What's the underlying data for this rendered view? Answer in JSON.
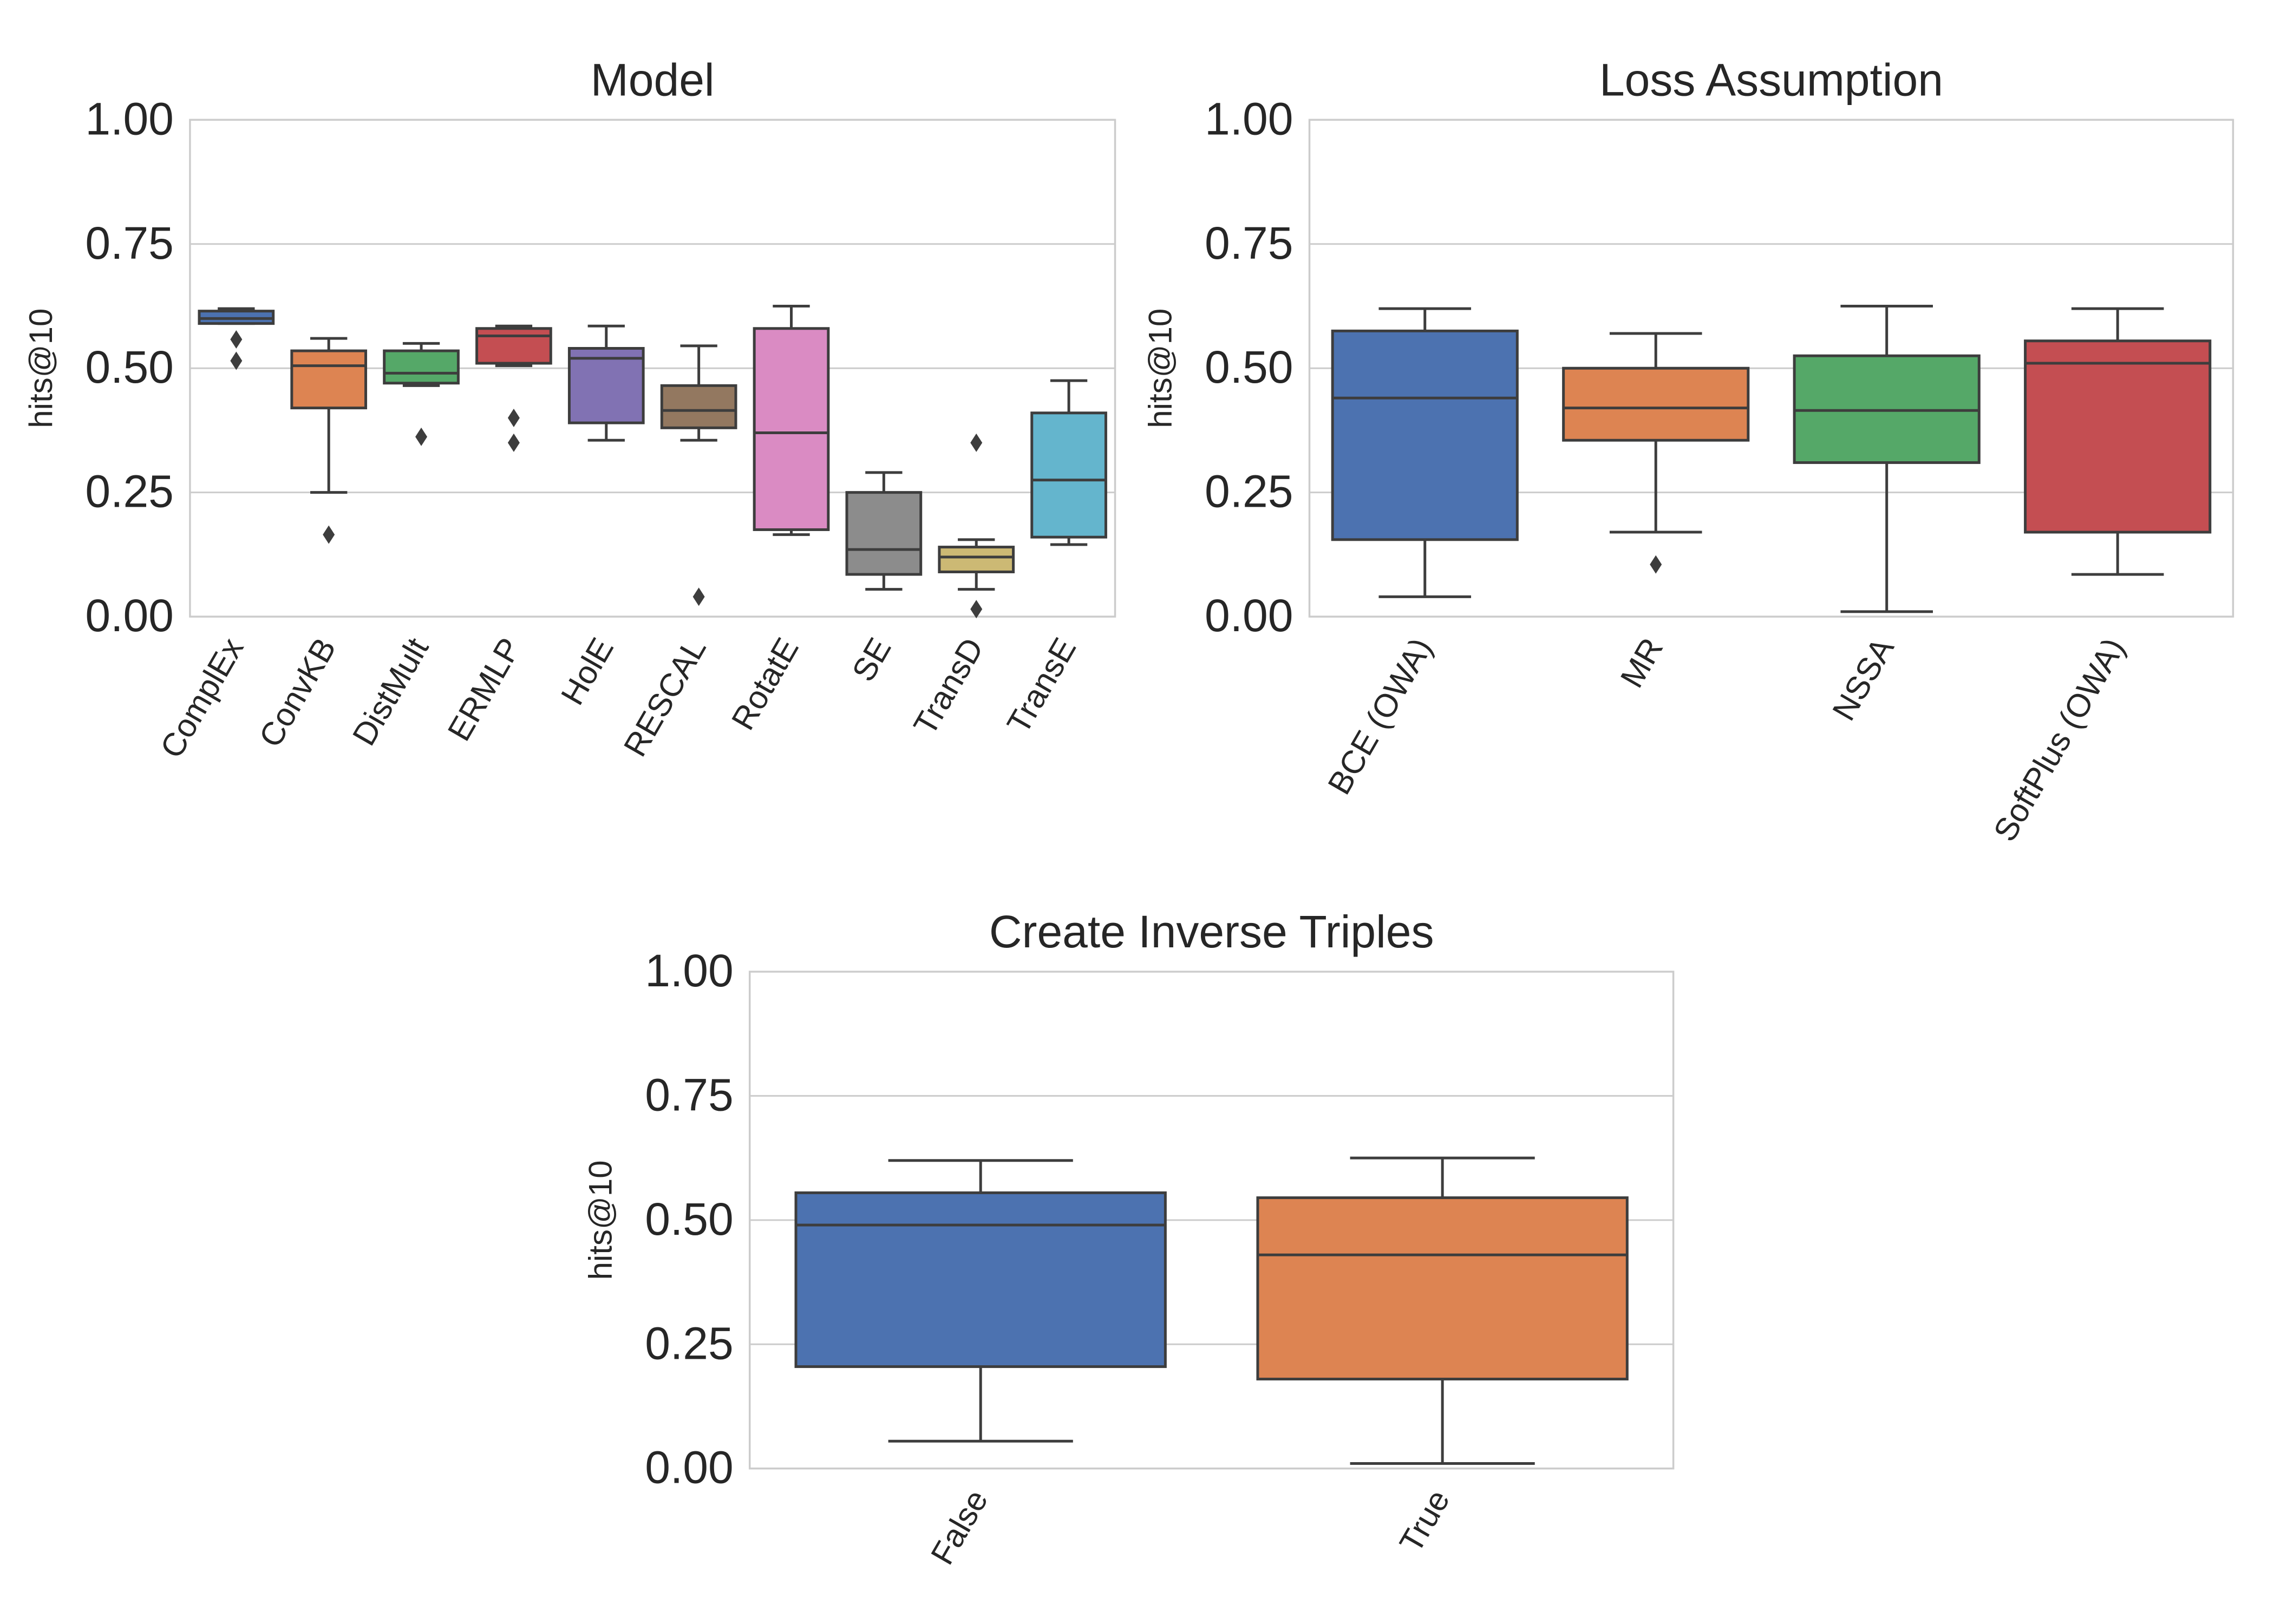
{
  "chart_data": [
    {
      "type": "box",
      "title": "Model",
      "ylabel": "hits@10",
      "ylim": [
        0,
        1
      ],
      "yticks": [
        "0.00",
        "0.25",
        "0.50",
        "0.75",
        "1.00"
      ],
      "grid": "horizontal",
      "categories": [
        "ComplEx",
        "ConvKB",
        "DistMult",
        "ERMLP",
        "HolE",
        "RESCAL",
        "RotatE",
        "SE",
        "TransD",
        "TransE"
      ],
      "colors": [
        "#4c72b0",
        "#dd8452",
        "#55a868",
        "#c44e52",
        "#8172b3",
        "#937860",
        "#da8bc3",
        "#8c8c8c",
        "#ccb974",
        "#64b5cd"
      ],
      "boxes": [
        {
          "whisker_low": 0.59,
          "q1": 0.59,
          "median": 0.6,
          "q3": 0.615,
          "whisker_high": 0.62,
          "outliers": [
            0.558,
            0.515
          ]
        },
        {
          "whisker_low": 0.25,
          "q1": 0.42,
          "median": 0.505,
          "q3": 0.535,
          "whisker_high": 0.56,
          "outliers": [
            0.165
          ]
        },
        {
          "whisker_low": 0.465,
          "q1": 0.47,
          "median": 0.49,
          "q3": 0.535,
          "whisker_high": 0.55,
          "outliers": [
            0.362
          ]
        },
        {
          "whisker_low": 0.505,
          "q1": 0.51,
          "median": 0.565,
          "q3": 0.58,
          "whisker_high": 0.585,
          "outliers": [
            0.4,
            0.35
          ]
        },
        {
          "whisker_low": 0.355,
          "q1": 0.39,
          "median": 0.52,
          "q3": 0.54,
          "whisker_high": 0.585,
          "outliers": []
        },
        {
          "whisker_low": 0.355,
          "q1": 0.38,
          "median": 0.415,
          "q3": 0.465,
          "whisker_high": 0.545,
          "outliers": [
            0.04
          ]
        },
        {
          "whisker_low": 0.165,
          "q1": 0.175,
          "median": 0.37,
          "q3": 0.58,
          "whisker_high": 0.625,
          "outliers": []
        },
        {
          "whisker_low": 0.055,
          "q1": 0.085,
          "median": 0.135,
          "q3": 0.25,
          "whisker_high": 0.29,
          "outliers": []
        },
        {
          "whisker_low": 0.055,
          "q1": 0.09,
          "median": 0.12,
          "q3": 0.14,
          "whisker_high": 0.155,
          "outliers": [
            0.35,
            0.015
          ]
        },
        {
          "whisker_low": 0.145,
          "q1": 0.16,
          "median": 0.275,
          "q3": 0.41,
          "whisker_high": 0.475,
          "outliers": []
        }
      ]
    },
    {
      "type": "box",
      "title": "Loss Assumption",
      "ylabel": "hits@10",
      "ylim": [
        0,
        1
      ],
      "yticks": [
        "0.00",
        "0.25",
        "0.50",
        "0.75",
        "1.00"
      ],
      "grid": "horizontal",
      "categories": [
        "BCE (OWA)",
        "MR",
        "NSSA",
        "SoftPlus (OWA)"
      ],
      "colors": [
        "#4c72b0",
        "#dd8452",
        "#55a868",
        "#c44e52"
      ],
      "boxes": [
        {
          "whisker_low": 0.04,
          "q1": 0.155,
          "median": 0.44,
          "q3": 0.575,
          "whisker_high": 0.62,
          "outliers": []
        },
        {
          "whisker_low": 0.17,
          "q1": 0.355,
          "median": 0.42,
          "q3": 0.5,
          "whisker_high": 0.57,
          "outliers": [
            0.105
          ]
        },
        {
          "whisker_low": 0.01,
          "q1": 0.31,
          "median": 0.415,
          "q3": 0.525,
          "whisker_high": 0.625,
          "outliers": []
        },
        {
          "whisker_low": 0.085,
          "q1": 0.17,
          "median": 0.51,
          "q3": 0.555,
          "whisker_high": 0.62,
          "outliers": []
        }
      ]
    },
    {
      "type": "box",
      "title": "Create Inverse Triples",
      "ylabel": "hits@10",
      "ylim": [
        0,
        1
      ],
      "yticks": [
        "0.00",
        "0.25",
        "0.50",
        "0.75",
        "1.00"
      ],
      "grid": "horizontal",
      "categories": [
        "False",
        "True"
      ],
      "colors": [
        "#4c72b0",
        "#dd8452"
      ],
      "boxes": [
        {
          "whisker_low": 0.055,
          "q1": 0.205,
          "median": 0.49,
          "q3": 0.555,
          "whisker_high": 0.62,
          "outliers": []
        },
        {
          "whisker_low": 0.01,
          "q1": 0.18,
          "median": 0.43,
          "q3": 0.545,
          "whisker_high": 0.625,
          "outliers": []
        }
      ]
    }
  ]
}
